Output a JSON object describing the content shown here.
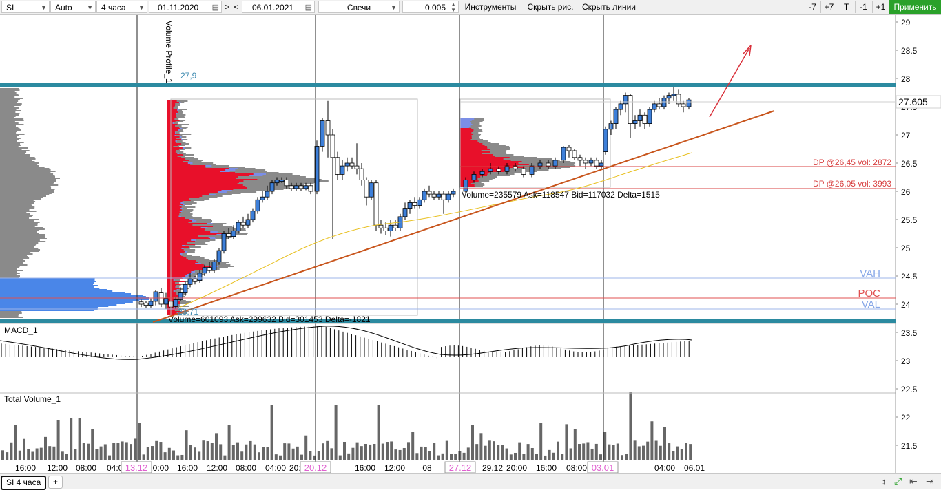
{
  "toolbar": {
    "symbol": "SI",
    "mode": "Auto",
    "timeframe": "4 часа",
    "date_from": "01.11.2020",
    "date_to": "06.01.2021",
    "nav_next": ">",
    "nav_prev": "<",
    "chart_type": "Свечи",
    "step": "0.005",
    "tools": "Инструменты",
    "hide_drawings": "Скрыть рис.",
    "hide_lines": "Скрыть линии",
    "btn_minus7": "-7",
    "btn_plus7": "+7",
    "btn_t": "T",
    "btn_minus1": "-1",
    "btn_plus1": "+1",
    "apply": "Применить"
  },
  "price_axis": {
    "ticks": [
      "29",
      "28.5",
      "28",
      "27.5",
      "27",
      "26.5",
      "26",
      "25.5",
      "25",
      "24.5",
      "24",
      "23.5",
      "23",
      "22.5",
      "22",
      "21.5"
    ],
    "current_price": "27.605"
  },
  "profile": {
    "title": "Volume Profile_1",
    "top_label": "27,9",
    "bottom_label": "23,71",
    "summary1": "Volume=601093  Ask=299632  Bid=301453  Delta=-1821",
    "summary2": "Volume=235579  Ask=118547  Bid=117032  Delta=1515"
  },
  "levels": {
    "dp1": "DP @26,45 vol: 2872",
    "dp2": "DP @26,05 vol: 3993",
    "vah": "VAH",
    "poc": "POC",
    "val": "VAL"
  },
  "panels": {
    "macd": "MACD_1",
    "volume": "Total Volume_1"
  },
  "time_axis": {
    "labels": [
      "16:00",
      "12:00",
      "08:00",
      "04:00",
      "20:00",
      "16:00",
      "12:00",
      "08:00",
      "04:00",
      "20:00",
      "16:00",
      "12:00",
      "08",
      "00",
      "29.12",
      "20:00",
      "16:00",
      "08:00",
      "04:00",
      "06.01"
    ],
    "highlight": [
      "13.12",
      "20.12",
      "27.12",
      "03.01"
    ]
  },
  "bottom_bar": {
    "tab": "SI 4 часа",
    "add": "+"
  },
  "colors": {
    "apply_green": "#2aa12a",
    "bull_candle": "#3d7fd9",
    "level_line": "#2b8aa0",
    "trend_line": "#c8551c",
    "arrow": "#d9303a",
    "ma_line": "#e8c020",
    "profile_red": "#e8102a",
    "profile_blue": "#7b8ee6",
    "profile_grey": "#8a8a8a",
    "date_pink": "#e060d0"
  }
}
